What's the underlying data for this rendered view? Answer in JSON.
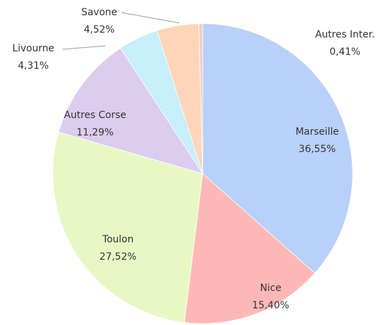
{
  "chart_data": {
    "type": "pie",
    "categories": [
      "Marseille",
      "Nice",
      "Toulon",
      "Autres Corse",
      "Livourne",
      "Savone",
      "Autres Inter."
    ],
    "values": [
      36.55,
      15.4,
      27.52,
      11.29,
      4.31,
      4.52,
      0.41
    ],
    "value_labels": [
      "36,55%",
      "15,40%",
      "27,52%",
      "11,29%",
      "4,31%",
      "4,52%",
      "0,41%"
    ],
    "colors": [
      "#b9d0f8",
      "#ffb8b8",
      "#e8f8c4",
      "#dccdef",
      "#c6eefb",
      "#fdd5b8",
      "#f4cccc"
    ]
  }
}
